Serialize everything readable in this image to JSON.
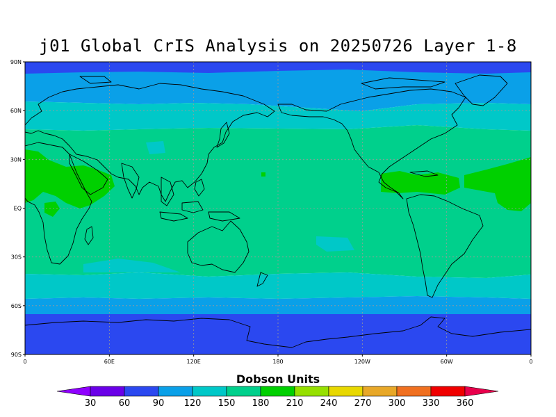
{
  "title": "j01 Global CrIS Analysis on 20250726 Layer 1-8",
  "axes": {
    "lat_ticks": [
      "90N",
      "60N",
      "30N",
      "EQ",
      "30S",
      "60S",
      "90S"
    ],
    "lon_ticks": [
      "0",
      "60E",
      "120E",
      "180",
      "120W",
      "60W",
      "0"
    ]
  },
  "colorbar": {
    "title": "Dobson Units",
    "tick_labels": [
      "30",
      "60",
      "90",
      "120",
      "150",
      "180",
      "210",
      "240",
      "270",
      "300",
      "330",
      "360"
    ],
    "colors": [
      "#8f00ff",
      "#6a00e8",
      "#2b48f0",
      "#0aa0e8",
      "#00c8c8",
      "#00d08c",
      "#00d000",
      "#96e000",
      "#e8d800",
      "#e8a828",
      "#f07020",
      "#f00000",
      "#e8004c"
    ]
  },
  "map_colors": {
    "band_60_90": "#2b48f0",
    "band_90_120": "#0aa0e8",
    "band_120_150": "#00c8c8",
    "band_150_180": "#00d08c",
    "band_180_210": "#00d000",
    "coast": "#000000",
    "grid": "#9a9a9a"
  }
}
